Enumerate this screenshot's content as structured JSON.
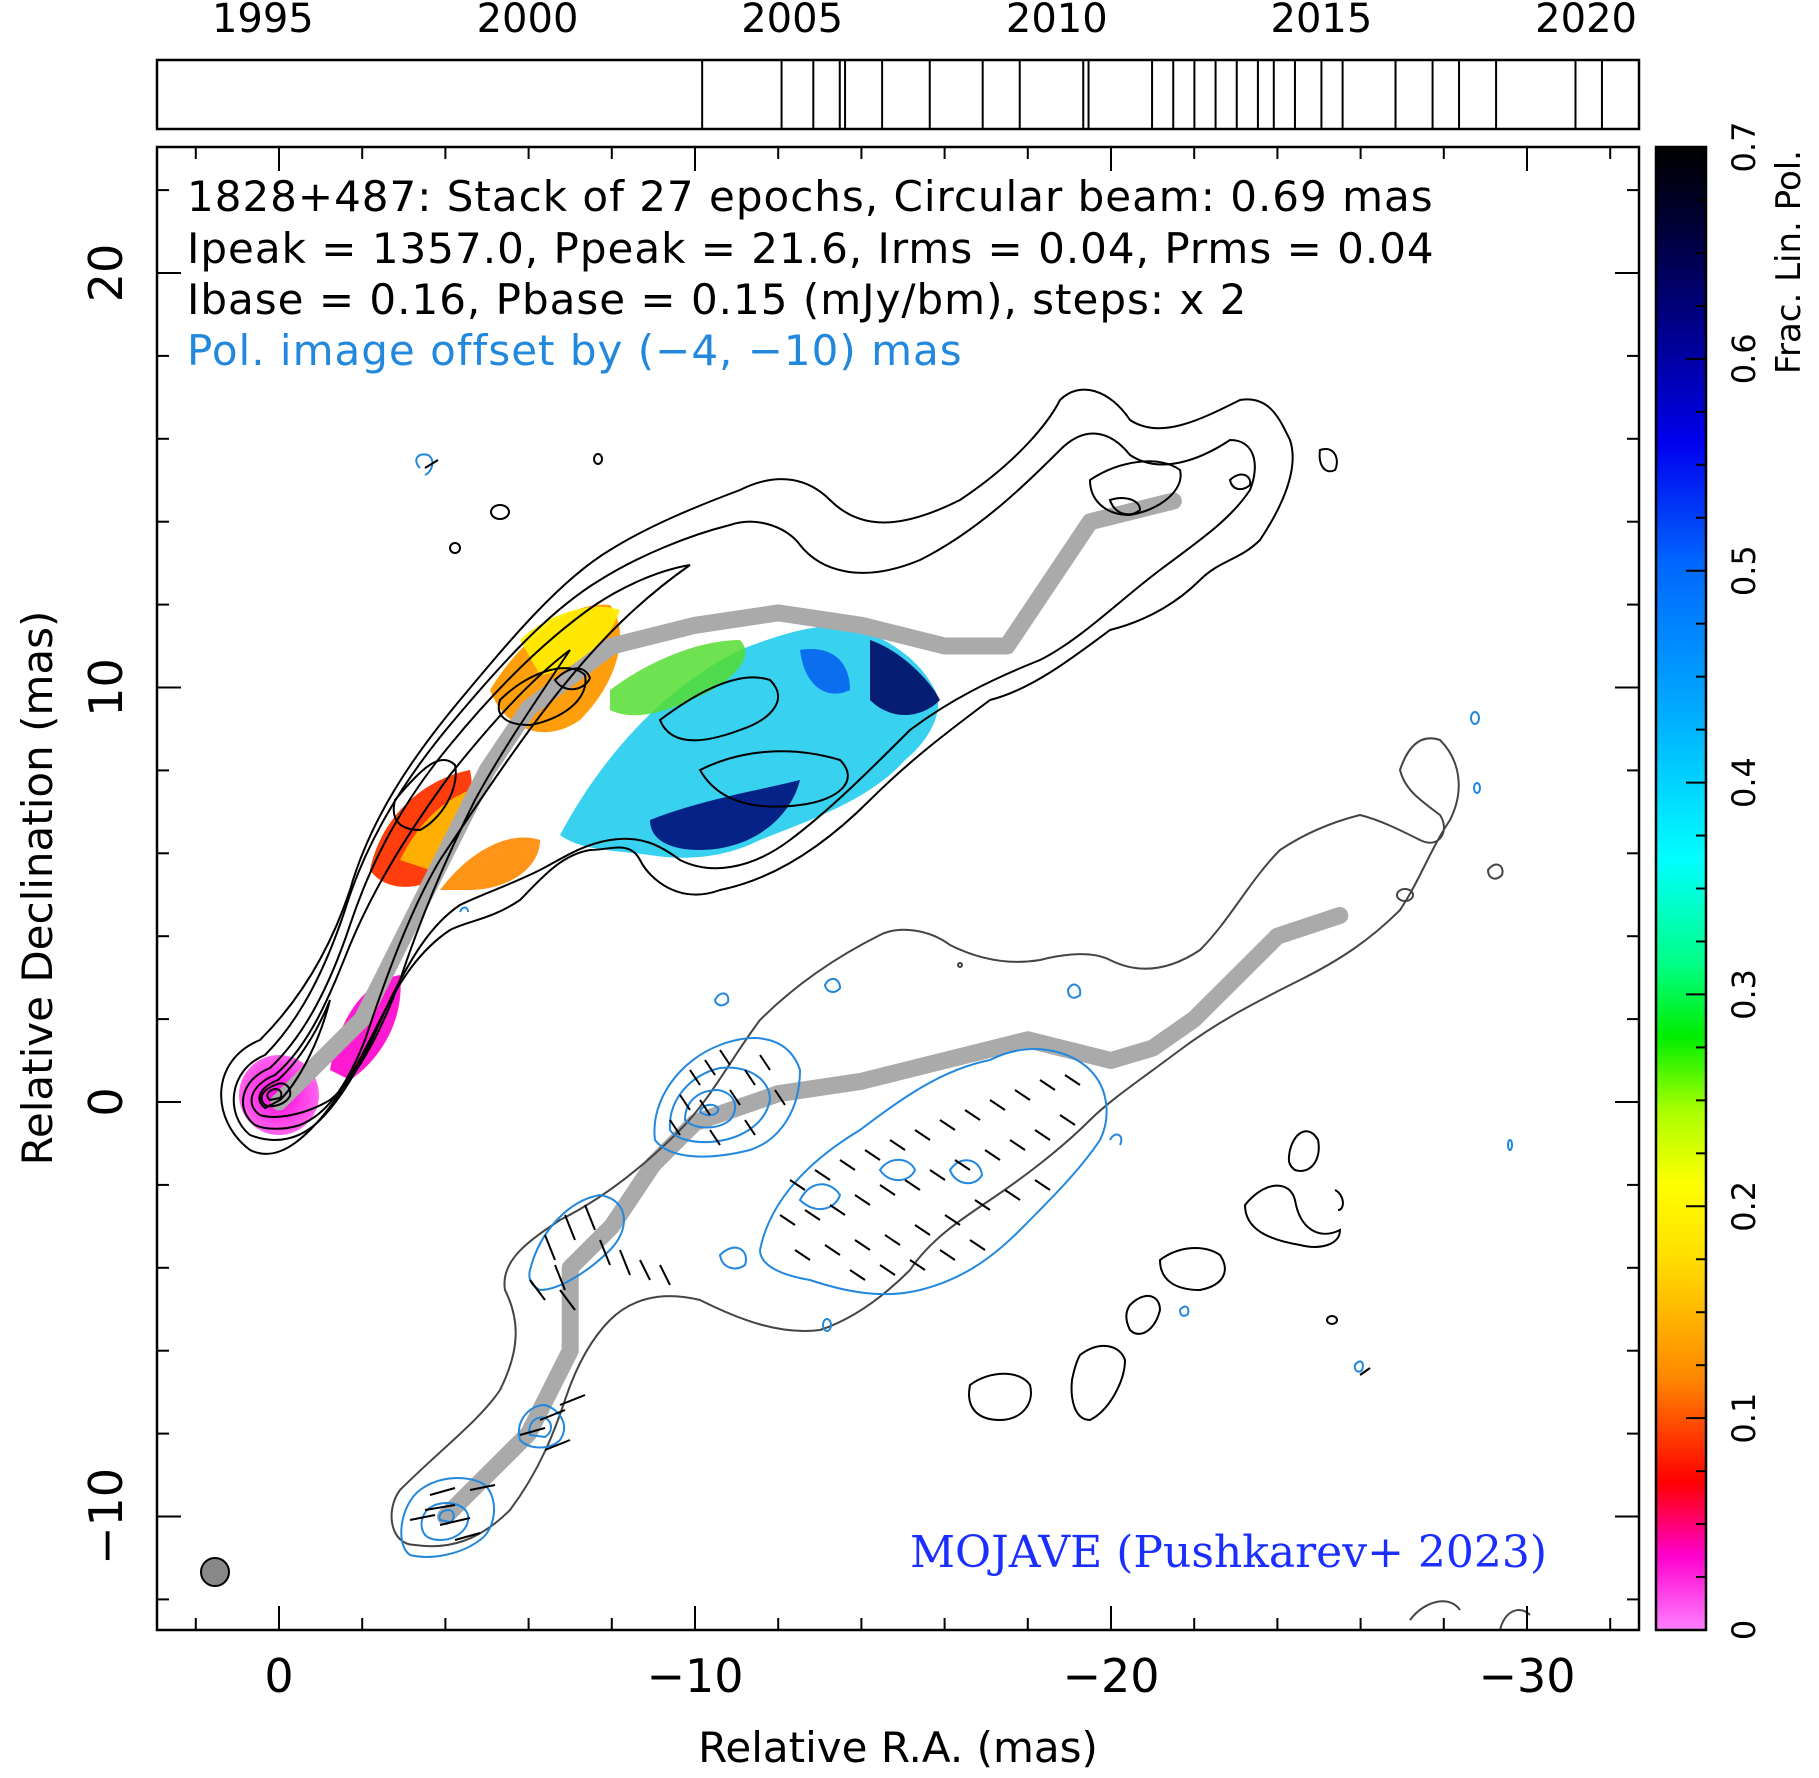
{
  "chart_data": {
    "type": "image",
    "xlabel": "Relative R.A. (mas)",
    "ylabel": "Relative Declination (mas)",
    "xlim": [
      3,
      -32
    ],
    "ylim": [
      -12.5,
      23
    ],
    "x_ticks": [
      0,
      -10,
      -20,
      -30
    ],
    "x_tick_labels": [
      "0",
      "−10",
      "−20",
      "−30"
    ],
    "y_ticks": [
      -10,
      0,
      10,
      20
    ],
    "y_tick_labels": [
      "−10",
      "0",
      "10",
      "20"
    ],
    "annotations": [
      "1828+487: Stack of 27 epochs, Circular beam: 0.69 mas",
      "Ipeak = 1357.0, Ppeak = 21.6, Irms = 0.04, Prms = 0.04",
      "Ibase = 0.16, Pbase = 0.15 (mJy/bm), steps: x 2",
      "Pol. image offset by (−4, −10) mas"
    ],
    "credit": "MOJAVE (Pushkarev+ 2023)",
    "epoch_timeline": {
      "range": [
        1993.0,
        2021.0
      ],
      "tick_labels": [
        "1995",
        "2000",
        "2005",
        "2010",
        "2015",
        "2020"
      ],
      "tick_years": [
        1995,
        2000,
        2005,
        2010,
        2015,
        2020
      ],
      "epochs": [
        2003.3,
        2004.8,
        2005.4,
        2005.9,
        2006.0,
        2006.7,
        2007.6,
        2008.6,
        2009.3,
        2010.5,
        2010.6,
        2011.8,
        2012.2,
        2012.6,
        2013.0,
        2013.4,
        2013.8,
        2014.1,
        2014.5,
        2015.0,
        2015.4,
        2016.4,
        2017.1,
        2017.6,
        2018.3,
        2019.8,
        2020.3
      ]
    },
    "colorbar": {
      "label": "Frac. Lin. Pol.",
      "range": [
        0,
        0.7
      ],
      "ticks": [
        0,
        0.1,
        0.2,
        0.3,
        0.4,
        0.5,
        0.6,
        0.7
      ],
      "tick_labels": [
        "0",
        "0.1",
        "0.2",
        "0.3",
        "0.4",
        "0.5",
        "0.6",
        "0.7"
      ]
    },
    "beam_diameter_mas": 0.69,
    "ridge_line": {
      "x": [
        0,
        -2,
        -3,
        -4,
        -5,
        -6,
        -8,
        -10,
        -12,
        -14,
        -16,
        -17.5,
        -18.5,
        -19.5,
        -21.5
      ],
      "y": [
        0,
        2,
        4,
        6,
        8,
        9.5,
        11,
        11.5,
        11.8,
        11.5,
        11,
        11,
        12.5,
        14,
        14.5
      ]
    },
    "pol_ridge_line": {
      "x": [
        -4,
        -6,
        -7,
        -7,
        -8,
        -9,
        -10,
        -12,
        -14,
        -16,
        -18,
        -20,
        -21,
        -22,
        -24,
        -25.5
      ],
      "y": [
        -10,
        -8,
        -6,
        -4,
        -3,
        -1.5,
        -0.5,
        0.2,
        0.5,
        1,
        1.5,
        1,
        1.3,
        2,
        4,
        4.5
      ]
    }
  }
}
